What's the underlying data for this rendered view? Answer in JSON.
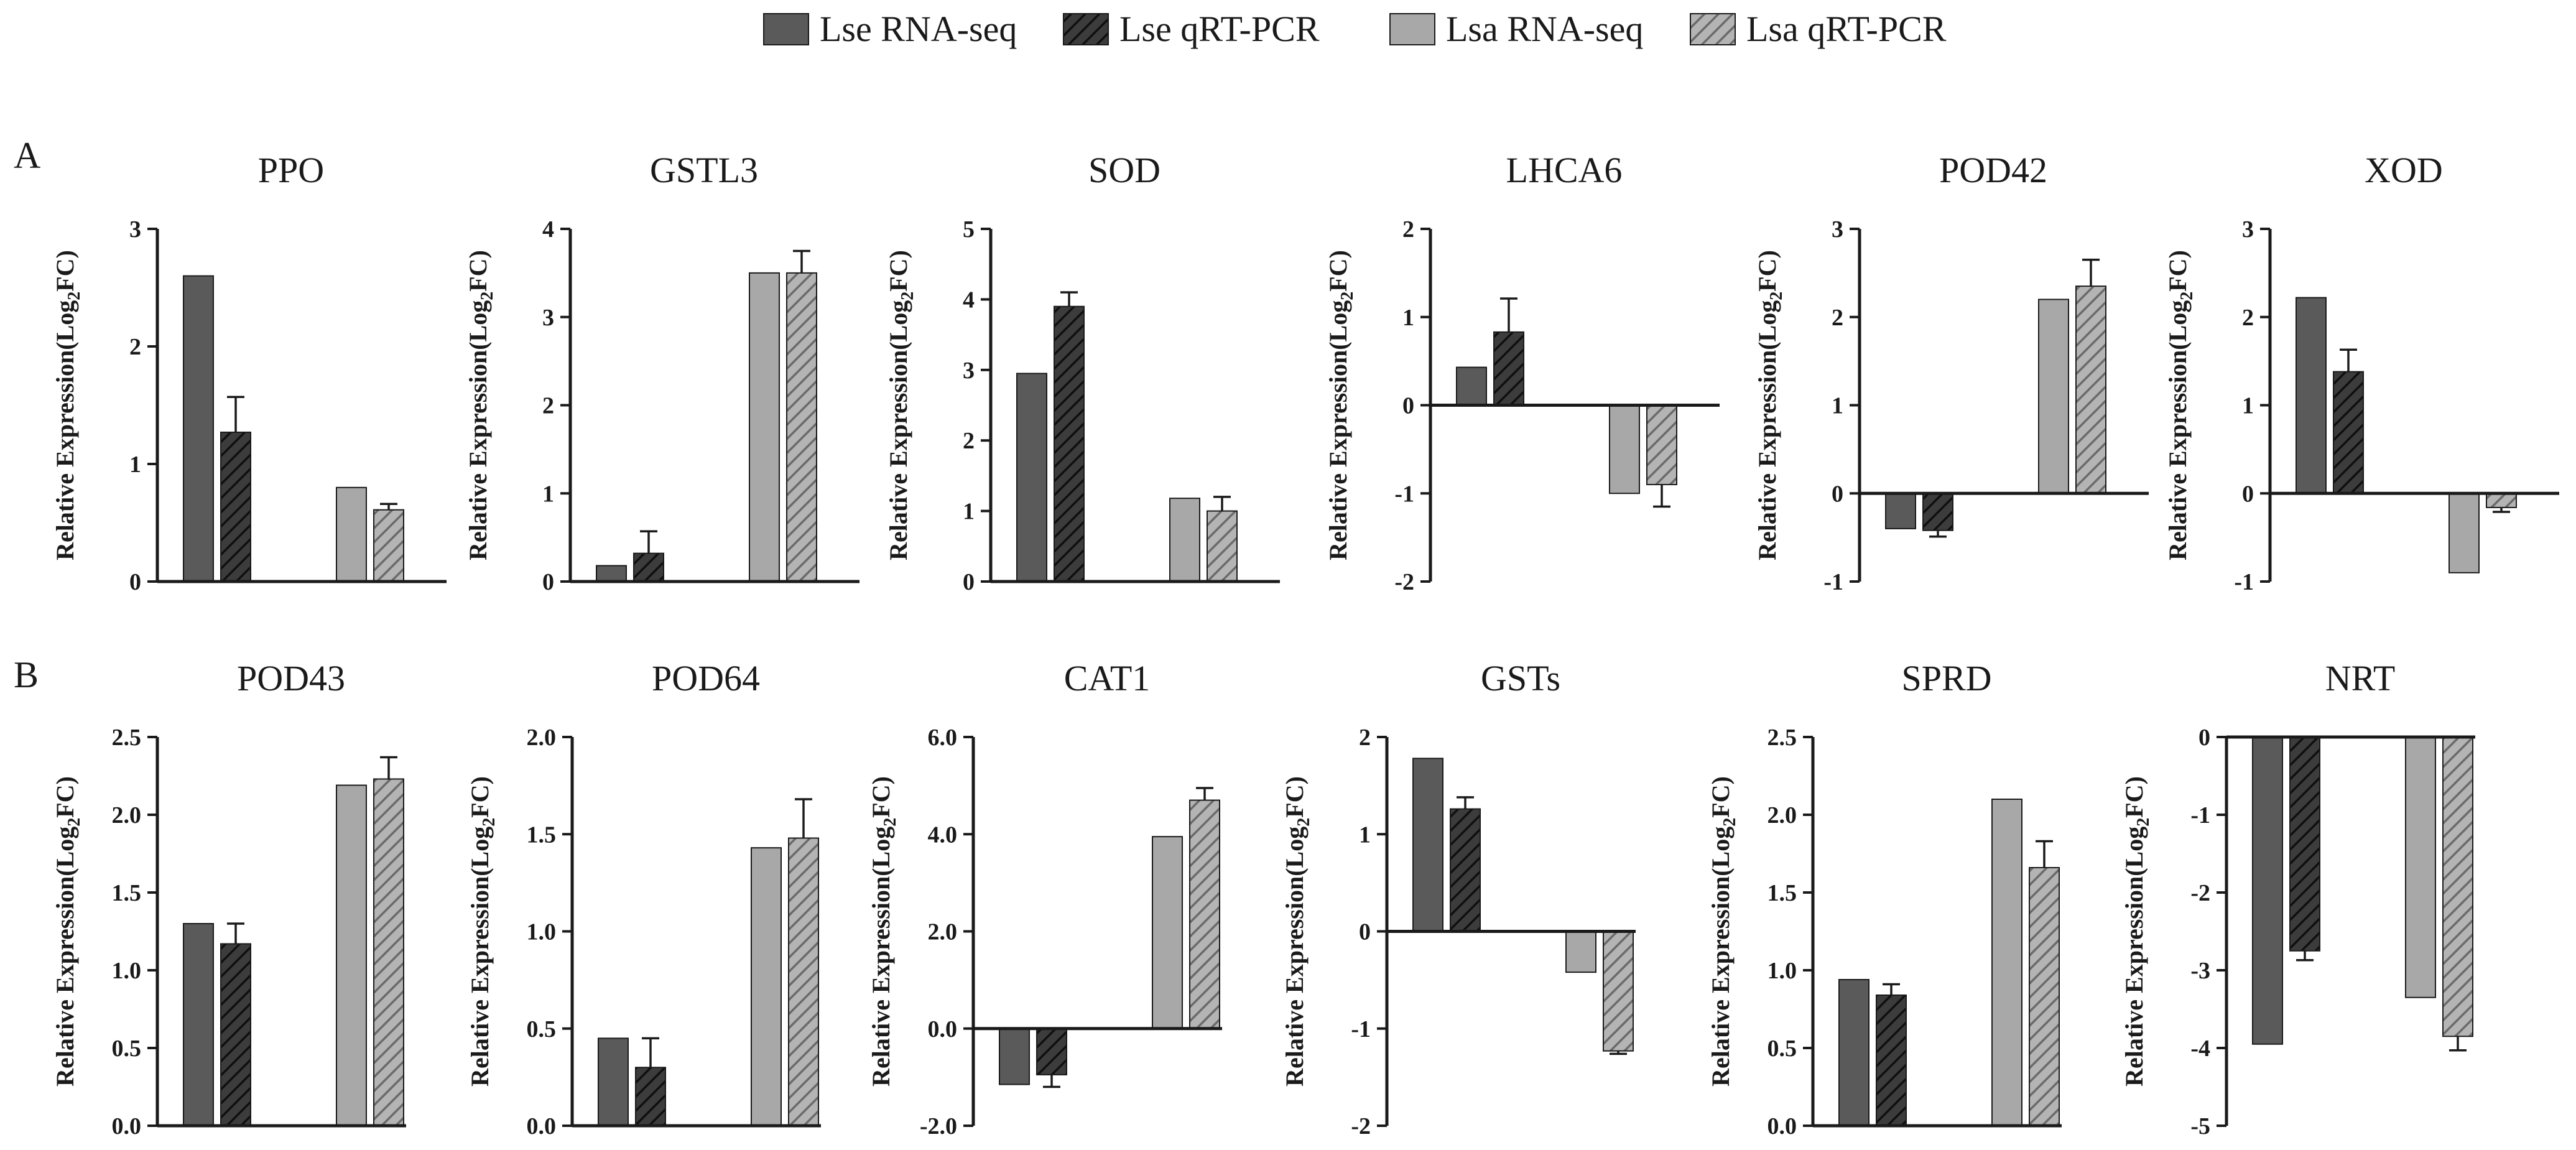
{
  "colors": {
    "lse_fill": "#5a5a5a",
    "lse_qpcr_fill": "#3c3c3c",
    "lsa_fill": "#a8a8a8",
    "lsa_qpcr_fill": "#b4b4b4",
    "hatch_dark": "#0f0f0f",
    "hatch_light": "#6a6a6a",
    "axis": "#1a1a1a"
  },
  "panel_labels": [
    "A",
    "B"
  ],
  "ylabel_parts": [
    "Relative Expression(Log",
    "2",
    "FC)"
  ],
  "chart_data": [
    {
      "type": "bar",
      "title": "PPO",
      "ylim": [
        0,
        3
      ],
      "ticks": [
        "0",
        "1",
        "2",
        "3"
      ],
      "series": [
        {
          "name": "Lse RNA-seq",
          "value": 2.6
        },
        {
          "name": "Lse qRT-PCR",
          "value": 1.27,
          "err": 0.3
        },
        {
          "name": "Lsa RNA-seq",
          "value": 0.8
        },
        {
          "name": "Lsa qRT-PCR",
          "value": 0.61,
          "err": 0.05
        }
      ]
    },
    {
      "type": "bar",
      "title": "GSTL3",
      "ylim": [
        0,
        4
      ],
      "ticks": [
        "0",
        "1",
        "2",
        "3",
        "4"
      ],
      "series": [
        {
          "name": "Lse RNA-seq",
          "value": 0.18
        },
        {
          "name": "Lse qRT-PCR",
          "value": 0.32,
          "err": 0.25
        },
        {
          "name": "Lsa RNA-seq",
          "value": 3.5
        },
        {
          "name": "Lsa qRT-PCR",
          "value": 3.5,
          "err": 0.25
        }
      ]
    },
    {
      "type": "bar",
      "title": "SOD",
      "ylim": [
        0,
        5
      ],
      "ticks": [
        "0",
        "1",
        "2",
        "3",
        "4",
        "5"
      ],
      "series": [
        {
          "name": "Lse RNA-seq",
          "value": 2.95
        },
        {
          "name": "Lse qRT-PCR",
          "value": 3.9,
          "err": 0.2
        },
        {
          "name": "Lsa RNA-seq",
          "value": 1.18
        },
        {
          "name": "Lsa qRT-PCR",
          "value": 1.0,
          "err": 0.2
        }
      ]
    },
    {
      "type": "bar",
      "title": "LHCA6",
      "ylim": [
        -2,
        2
      ],
      "ticks": [
        "-2",
        "-1",
        "0",
        "1",
        "2"
      ],
      "series": [
        {
          "name": "Lse RNA-seq",
          "value": 0.43
        },
        {
          "name": "Lse qRT-PCR",
          "value": 0.83,
          "err": 0.38
        },
        {
          "name": "Lsa RNA-seq",
          "value": -1.0
        },
        {
          "name": "Lsa qRT-PCR",
          "value": -0.9,
          "err": 0.25
        }
      ]
    },
    {
      "type": "bar",
      "title": "POD42",
      "ylim": [
        -1,
        3
      ],
      "ticks": [
        "-1",
        "0",
        "1",
        "2",
        "3"
      ],
      "series": [
        {
          "name": "Lse RNA-seq",
          "value": -0.4
        },
        {
          "name": "Lse qRT-PCR",
          "value": -0.42,
          "err": 0.07
        },
        {
          "name": "Lsa RNA-seq",
          "value": 2.2
        },
        {
          "name": "Lsa qRT-PCR",
          "value": 2.35,
          "err": 0.3
        }
      ]
    },
    {
      "type": "bar",
      "title": "XOD",
      "ylim": [
        -1,
        3
      ],
      "ticks": [
        "-1",
        "0",
        "1",
        "2",
        "3"
      ],
      "series": [
        {
          "name": "Lse RNA-seq",
          "value": 2.22
        },
        {
          "name": "Lse qRT-PCR",
          "value": 1.38,
          "err": 0.25
        },
        {
          "name": "Lsa RNA-seq",
          "value": -0.9
        },
        {
          "name": "Lsa qRT-PCR",
          "value": -0.16,
          "err": 0.05
        }
      ]
    },
    {
      "type": "bar",
      "title": "POD43",
      "ylim": [
        0,
        2.5
      ],
      "ticks": [
        "0.0",
        "0.5",
        "1.0",
        "1.5",
        "2.0",
        "2.5"
      ],
      "series": [
        {
          "name": "Lse RNA-seq",
          "value": 1.3
        },
        {
          "name": "Lse qRT-PCR",
          "value": 1.17,
          "err": 0.13
        },
        {
          "name": "Lsa RNA-seq",
          "value": 2.19
        },
        {
          "name": "Lsa qRT-PCR",
          "value": 2.23,
          "err": 0.14
        }
      ]
    },
    {
      "type": "bar",
      "title": "POD64",
      "ylim": [
        0,
        2.0
      ],
      "ticks": [
        "0.0",
        "0.5",
        "1.0",
        "1.5",
        "2.0"
      ],
      "series": [
        {
          "name": "Lse RNA-seq",
          "value": 0.45
        },
        {
          "name": "Lse qRT-PCR",
          "value": 0.3,
          "err": 0.15
        },
        {
          "name": "Lsa RNA-seq",
          "value": 1.43
        },
        {
          "name": "Lsa qRT-PCR",
          "value": 1.48,
          "err": 0.2
        }
      ]
    },
    {
      "type": "bar",
      "title": "CAT1",
      "ylim": [
        -2.0,
        6.0
      ],
      "ticks": [
        "-2.0",
        "0.0",
        "2.0",
        "4.0",
        "6.0"
      ],
      "series": [
        {
          "name": "Lse RNA-seq",
          "value": -1.15
        },
        {
          "name": "Lse qRT-PCR",
          "value": -0.95,
          "err": 0.25
        },
        {
          "name": "Lsa RNA-seq",
          "value": 3.95
        },
        {
          "name": "Lsa qRT-PCR",
          "value": 4.7,
          "err": 0.25
        }
      ]
    },
    {
      "type": "bar",
      "title": "GSTs",
      "ylim": [
        -2,
        2
      ],
      "ticks": [
        "-2",
        "-1",
        "0",
        "1",
        "2"
      ],
      "series": [
        {
          "name": "Lse RNA-seq",
          "value": 1.78
        },
        {
          "name": "Lse qRT-PCR",
          "value": 1.26,
          "err": 0.12
        },
        {
          "name": "Lsa RNA-seq",
          "value": -0.42
        },
        {
          "name": "Lsa qRT-PCR",
          "value": -1.23,
          "err": 0.03
        }
      ]
    },
    {
      "type": "bar",
      "title": "SPRD",
      "ylim": [
        0,
        2.5
      ],
      "ticks": [
        "0.0",
        "0.5",
        "1.0",
        "1.5",
        "2.0",
        "2.5"
      ],
      "series": [
        {
          "name": "Lse RNA-seq",
          "value": 0.94
        },
        {
          "name": "Lse qRT-PCR",
          "value": 0.84,
          "err": 0.07
        },
        {
          "name": "Lsa RNA-seq",
          "value": 2.1
        },
        {
          "name": "Lsa qRT-PCR",
          "value": 1.66,
          "err": 0.17
        }
      ]
    },
    {
      "type": "bar",
      "title": "NRT",
      "ylim": [
        -5,
        0
      ],
      "ticks": [
        "-5",
        "-4",
        "-3",
        "-2",
        "-1",
        "0"
      ],
      "series": [
        {
          "name": "Lse RNA-seq",
          "value": -3.95
        },
        {
          "name": "Lse qRT-PCR",
          "value": -2.75,
          "err": 0.12
        },
        {
          "name": "Lsa RNA-seq",
          "value": -3.35
        },
        {
          "name": "Lsa qRT-PCR",
          "value": -3.85,
          "err": 0.18
        }
      ]
    }
  ],
  "legend": [
    {
      "label": "Lse RNA-seq",
      "pattern": "solid-dark"
    },
    {
      "label": "Lse qRT-PCR",
      "pattern": "hatched-dark"
    },
    {
      "label": "Lsa RNA-seq",
      "pattern": "solid-light"
    },
    {
      "label": "Lsa qRT-PCR",
      "pattern": "hatched-light"
    }
  ]
}
